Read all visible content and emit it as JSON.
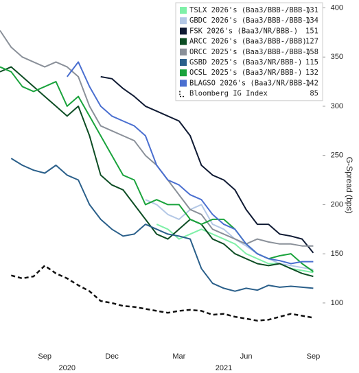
{
  "chart_data": {
    "type": "line",
    "y_label": "G-Spread (bps)",
    "ylim": [
      56,
      408
    ],
    "yticks": [
      100,
      150,
      200,
      250,
      300,
      350,
      400
    ],
    "categories": [
      null,
      null,
      null,
      null,
      "Sep",
      null,
      null,
      null,
      null,
      null,
      "Dec",
      null,
      null,
      null,
      null,
      null,
      "Mar",
      null,
      null,
      null,
      null,
      null,
      "Jun",
      null,
      null,
      null,
      null,
      null,
      "Sep"
    ],
    "year_categories": [
      null,
      null,
      null,
      null,
      null,
      null,
      "2020",
      null,
      null,
      null,
      null,
      null,
      null,
      null,
      null,
      null,
      null,
      null,
      null,
      null,
      "2021",
      null,
      null,
      null,
      null,
      null,
      null,
      null,
      null
    ],
    "legend_position": "upper right",
    "series": [
      {
        "name": "TSLX 2026's (Baa3/BBB-/BBB-)",
        "last": 131,
        "color": "#7ff0a8",
        "values": [
          null,
          null,
          null,
          null,
          null,
          null,
          null,
          null,
          null,
          null,
          null,
          null,
          null,
          null,
          180,
          175,
          165,
          170,
          175,
          170,
          165,
          160,
          150,
          145,
          140,
          140,
          135,
          133,
          131
        ]
      },
      {
        "name": "GBDC 2026's (Baa3/BBB-/BBB-)",
        "last": 134,
        "color": "#b4c8e6",
        "values": [
          null,
          null,
          null,
          null,
          null,
          null,
          null,
          null,
          null,
          null,
          null,
          null,
          null,
          205,
          200,
          190,
          185,
          195,
          200,
          180,
          175,
          165,
          158,
          150,
          145,
          140,
          138,
          136,
          134
        ]
      },
      {
        "name": "FSK 2026's (Baa3/NR/BBB-)",
        "last": 151,
        "color": "#0f1a33",
        "values": [
          null,
          null,
          null,
          null,
          null,
          null,
          null,
          null,
          null,
          330,
          328,
          318,
          310,
          300,
          295,
          290,
          285,
          270,
          240,
          230,
          225,
          215,
          195,
          180,
          180,
          170,
          168,
          165,
          151
        ]
      },
      {
        "name": "ARCC 2026's (Baa3/BBB-/BBB)",
        "last": 127,
        "color": "#0d4d24",
        "values": [
          335,
          340,
          330,
          320,
          310,
          300,
          290,
          300,
          270,
          230,
          220,
          215,
          200,
          185,
          170,
          165,
          175,
          185,
          180,
          165,
          160,
          150,
          145,
          140,
          138,
          140,
          135,
          130,
          127
        ]
      },
      {
        "name": "ORCC 2025's (Baa3/BBB-/BBB-)",
        "last": 158,
        "color": "#8a9099",
        "values": [
          377,
          360,
          350,
          345,
          340,
          345,
          340,
          330,
          300,
          280,
          275,
          270,
          265,
          250,
          240,
          225,
          210,
          195,
          190,
          175,
          170,
          165,
          160,
          165,
          162,
          160,
          160,
          158,
          158
        ]
      },
      {
        "name": "GSBD 2025's (Baa3/NR/BBB-)",
        "last": 115,
        "color": "#2a5f8a",
        "values": [
          null,
          247,
          240,
          235,
          232,
          240,
          230,
          225,
          200,
          185,
          175,
          168,
          170,
          180,
          175,
          170,
          168,
          165,
          135,
          120,
          115,
          112,
          115,
          113,
          118,
          116,
          117,
          116,
          115
        ]
      },
      {
        "name": "OCSL 2025's (Baa3/NR/BBB-)",
        "last": 132,
        "color": "#1aa33c",
        "values": [
          340,
          335,
          320,
          315,
          320,
          325,
          300,
          310,
          290,
          270,
          250,
          230,
          225,
          200,
          205,
          200,
          200,
          185,
          180,
          185,
          185,
          175,
          160,
          150,
          145,
          148,
          150,
          140,
          132
        ]
      },
      {
        "name": "BLAGSO 2026's (Baa3/NR/BBB-)",
        "last": 142,
        "color": "#4a6fd0",
        "values": [
          null,
          null,
          null,
          null,
          null,
          null,
          330,
          345,
          320,
          300,
          290,
          285,
          280,
          270,
          240,
          225,
          220,
          210,
          205,
          190,
          180,
          175,
          160,
          150,
          145,
          143,
          140,
          142,
          142
        ]
      },
      {
        "name": "Bloomberg IG Index",
        "last": 85,
        "color": "#111111",
        "dashed": true,
        "values": [
          null,
          128,
          125,
          127,
          138,
          130,
          125,
          118,
          112,
          102,
          100,
          97,
          96,
          94,
          92,
          90,
          92,
          93,
          92,
          88,
          89,
          86,
          84,
          82,
          83,
          86,
          89,
          87,
          85
        ]
      }
    ]
  }
}
